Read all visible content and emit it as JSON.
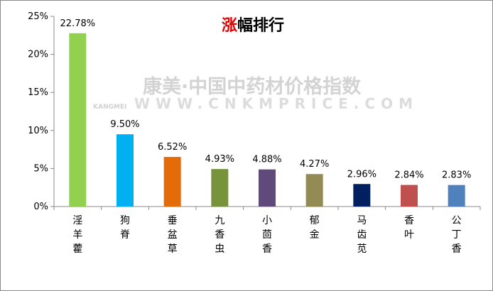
{
  "watermark": {
    "brand_cn": "康美·中国中药材价格指数",
    "brand_en": "KANGMEI",
    "url": "WWW.CNKMPRICE.COM"
  },
  "chart_data": {
    "type": "bar",
    "title_accent": "涨",
    "title_rest": "幅排行",
    "categories": [
      "淫羊藿",
      "狗脊",
      "垂盆草",
      "九香虫",
      "小茴香",
      "郁金",
      "马齿苋",
      "香叶",
      "公丁香"
    ],
    "values": [
      22.78,
      9.5,
      6.52,
      4.93,
      4.88,
      4.27,
      2.96,
      2.84,
      2.83
    ],
    "value_labels": [
      "22.78%",
      "9.50%",
      "6.52%",
      "4.93%",
      "4.88%",
      "4.27%",
      "2.96%",
      "2.84%",
      "2.83%"
    ],
    "colors": [
      "#92d050",
      "#00b0f0",
      "#e36c09",
      "#77933c",
      "#604a7b",
      "#948a54",
      "#002060",
      "#c0504d",
      "#4f81bd"
    ],
    "y_ticks": [
      "0%",
      "5%",
      "10%",
      "15%",
      "20%",
      "25%"
    ],
    "ylim": [
      0,
      25
    ],
    "grid": false,
    "legend": "none"
  }
}
